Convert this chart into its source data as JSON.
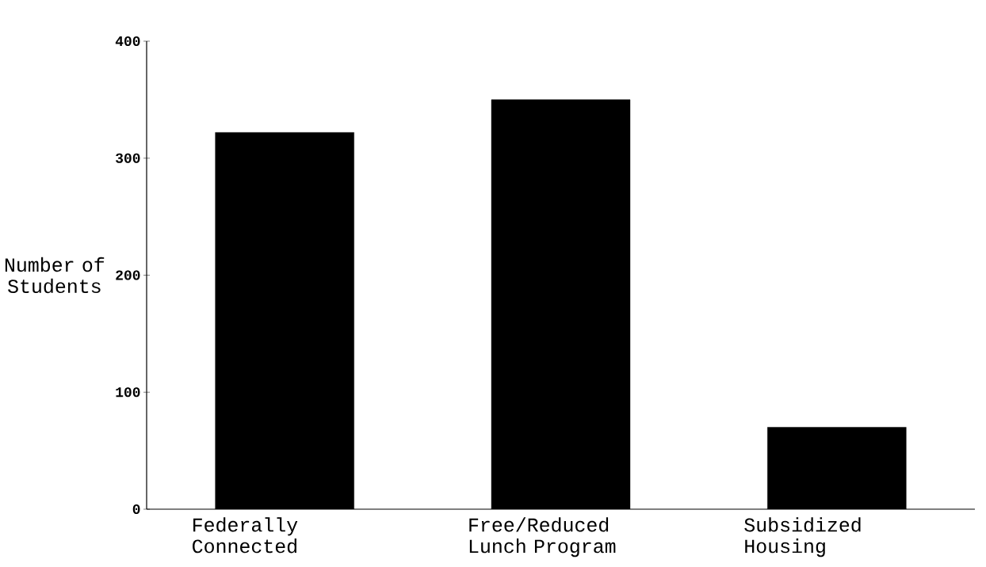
{
  "chart_data": {
    "type": "bar",
    "ylabel": "Number of Students",
    "categories": [
      "Federally Connected",
      "Free/Reduced Lunch Program",
      "Subsidized Housing"
    ],
    "values": [
      322,
      350,
      70
    ],
    "color": "#000000",
    "ylim": [
      0,
      400
    ],
    "yticks": [
      0,
      100,
      200,
      300,
      400
    ]
  }
}
